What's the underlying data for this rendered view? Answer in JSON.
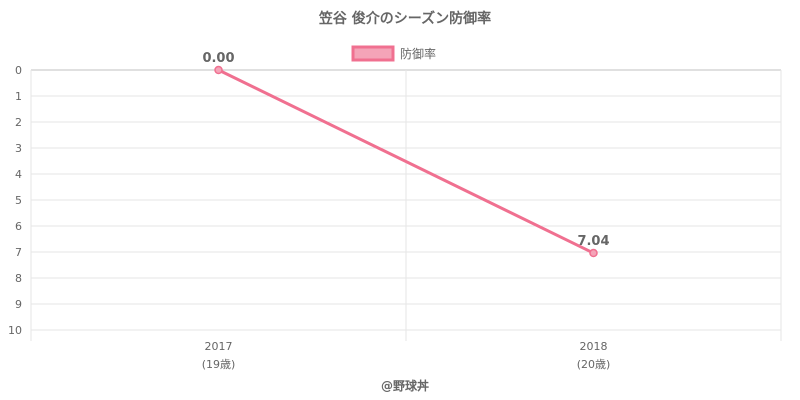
{
  "chart_data": {
    "type": "line",
    "title": "笠谷 俊介のシーズン防御率",
    "categories": [
      "2017",
      "2018"
    ],
    "category_sublabels": [
      "(19歳)",
      "(20歳)"
    ],
    "series": [
      {
        "name": "防御率",
        "values": [
          0.0,
          7.04
        ],
        "data_labels": [
          "0.00",
          "7.04"
        ],
        "color": "#f07090",
        "fill_color": "#f4a4b8"
      }
    ],
    "y_ticks": [
      "0",
      "1",
      "2",
      "3",
      "4",
      "5",
      "6",
      "7",
      "8",
      "9",
      "10"
    ],
    "ylim": [
      0,
      10
    ],
    "y_reversed": true,
    "grid": true,
    "legend_position": "top-center",
    "credit": "@野球丼"
  }
}
